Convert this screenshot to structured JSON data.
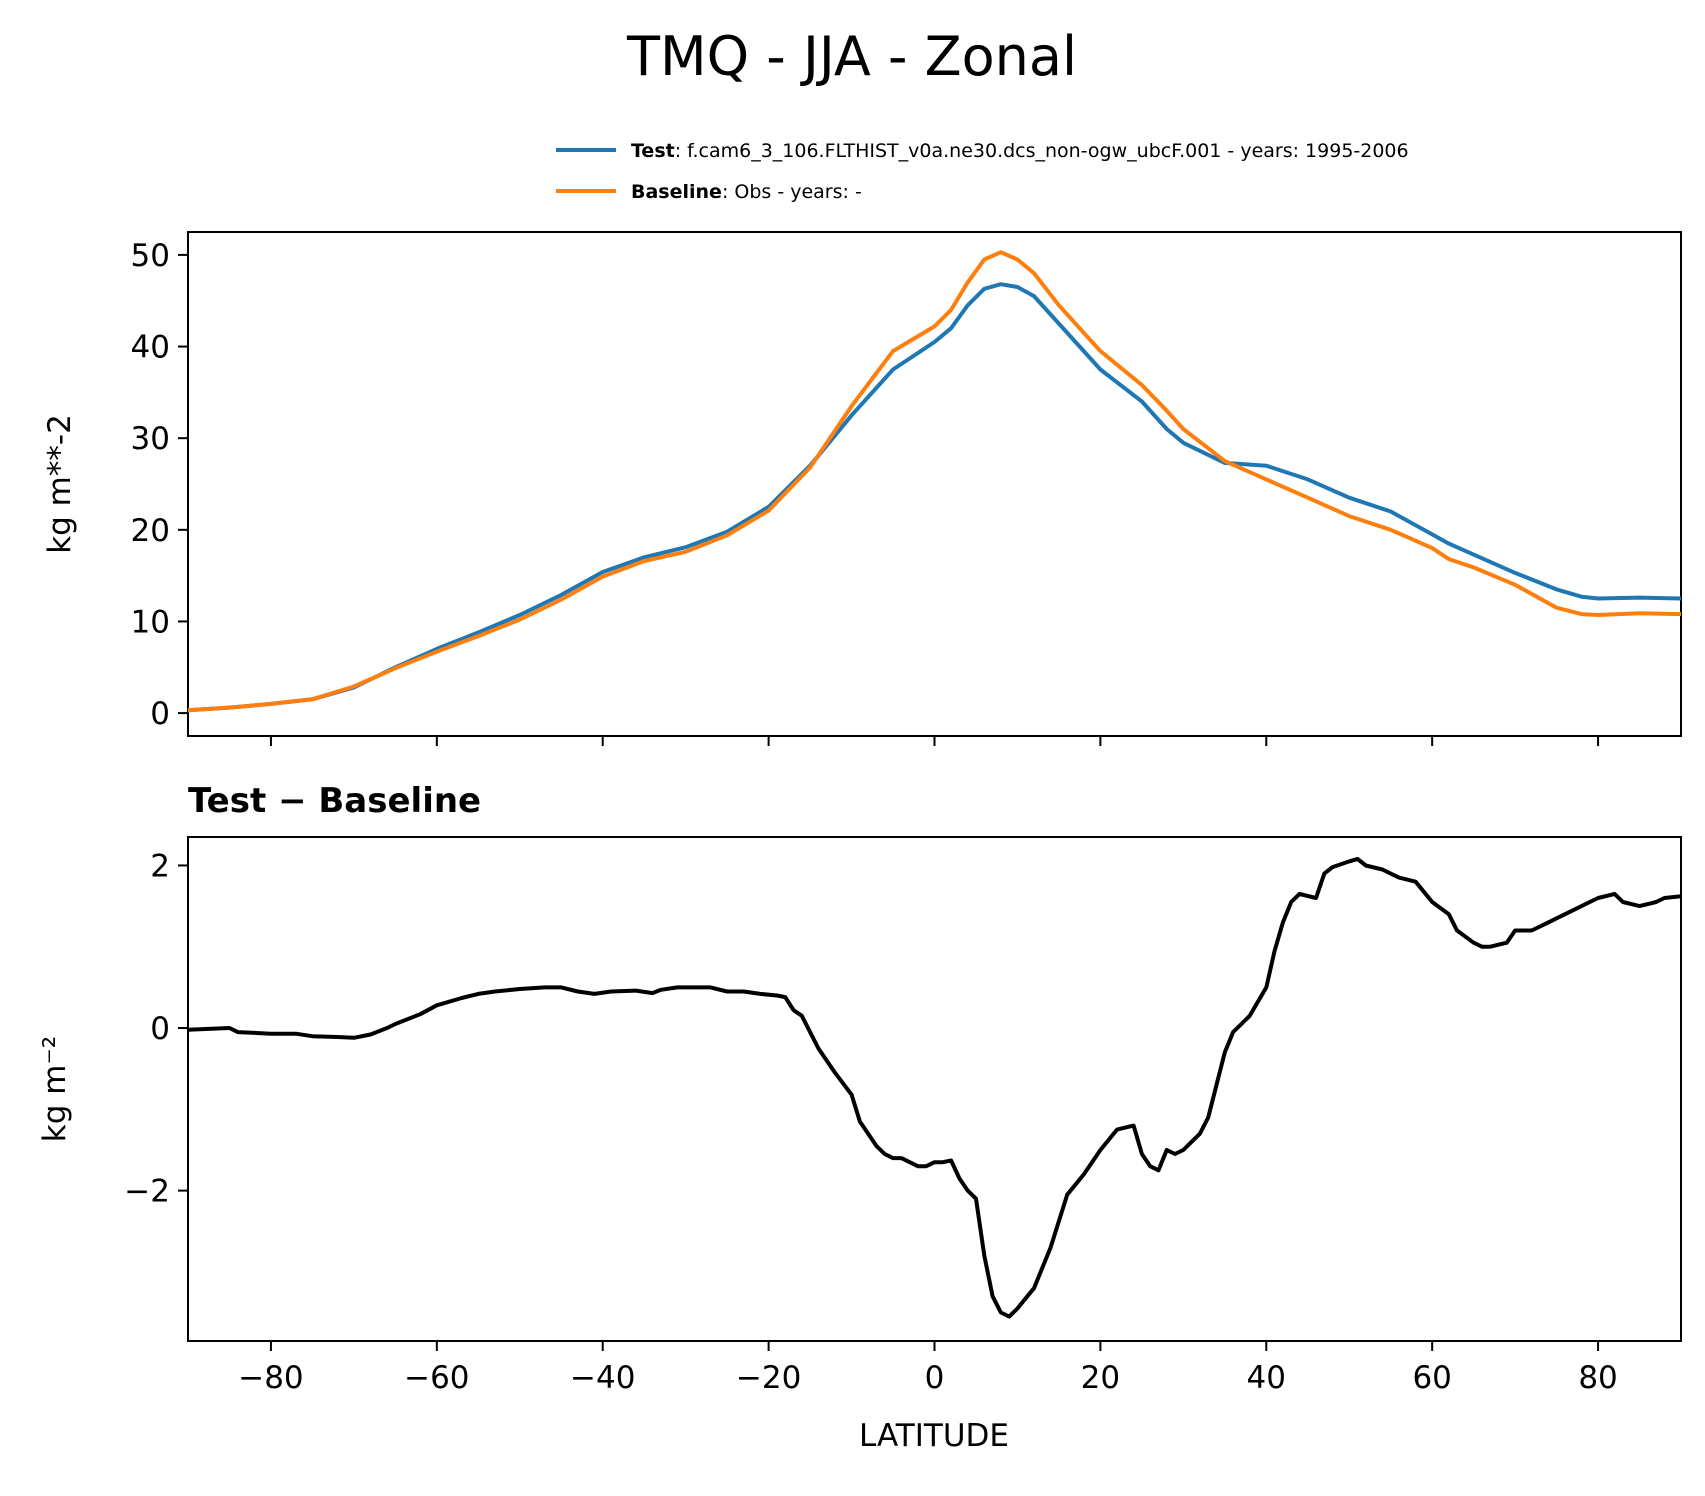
{
  "chart_data": {
    "type": "line",
    "title": "TMQ - JJA - Zonal",
    "legend": {
      "placement": "top-right",
      "entries": [
        {
          "series": "Test",
          "label_bold": "Test",
          "label_text": ": f.cam6_3_106.FLTHIST_v0a.ne30.dcs_non-ogw_ubcF.001 - years: 1995-2006",
          "color": "#1f77b4"
        },
        {
          "series": "Baseline",
          "label_bold": "Baseline",
          "label_text": ": Obs - years: -",
          "color": "#ff7f0e"
        }
      ]
    },
    "xlabel": "LATITUDE",
    "xlim": [
      -90,
      90
    ],
    "xticks": [
      -80,
      -60,
      -40,
      -20,
      0,
      20,
      40,
      60,
      80
    ],
    "xtick_labels": [
      "−80",
      "−60",
      "−40",
      "−20",
      "0",
      "20",
      "40",
      "60",
      "80"
    ],
    "top_panel": {
      "ylabel": "kg m**-2",
      "ylim": [
        -2.5,
        52.5
      ],
      "yticks": [
        0,
        10,
        20,
        30,
        40,
        50
      ],
      "ytick_labels": [
        "0",
        "10",
        "20",
        "30",
        "40",
        "50"
      ],
      "x": [
        -90,
        -85,
        -80,
        -75,
        -70,
        -65,
        -60,
        -55,
        -50,
        -45,
        -40,
        -35,
        -30,
        -25,
        -20,
        -15,
        -10,
        -5,
        0,
        2,
        4,
        6,
        8,
        10,
        12,
        15,
        20,
        25,
        28,
        30,
        35,
        40,
        45,
        50,
        55,
        60,
        62,
        65,
        70,
        75,
        78,
        80,
        85,
        90
      ],
      "series": [
        {
          "name": "Test",
          "color": "#1f77b4",
          "values": [
            0.3,
            0.6,
            1.0,
            1.5,
            2.8,
            5.0,
            7.0,
            8.8,
            10.7,
            12.9,
            15.4,
            17.0,
            18.1,
            19.8,
            22.5,
            27.0,
            32.5,
            37.5,
            40.5,
            42.0,
            44.5,
            46.3,
            46.8,
            46.5,
            45.5,
            42.5,
            37.5,
            34.0,
            31.0,
            29.5,
            27.3,
            27.0,
            25.5,
            23.5,
            22.0,
            19.5,
            18.5,
            17.3,
            15.3,
            13.5,
            12.7,
            12.5,
            12.6,
            12.5
          ]
        },
        {
          "name": "Baseline",
          "color": "#ff7f0e",
          "values": [
            0.3,
            0.6,
            1.0,
            1.5,
            2.9,
            4.9,
            6.7,
            8.4,
            10.2,
            12.4,
            14.9,
            16.6,
            17.6,
            19.4,
            22.1,
            26.8,
            33.5,
            39.5,
            42.2,
            44.0,
            47.0,
            49.5,
            50.3,
            49.5,
            48.0,
            44.5,
            39.5,
            35.8,
            33.0,
            31.0,
            27.5,
            25.5,
            23.5,
            21.5,
            20.0,
            18.0,
            16.8,
            15.9,
            14.0,
            11.5,
            10.8,
            10.7,
            10.9,
            10.8
          ]
        }
      ]
    },
    "bottom_panel": {
      "title": "Test − Baseline",
      "ylabel": "kg m⁻²",
      "ylim": [
        -3.85,
        2.35
      ],
      "yticks": [
        2,
        0,
        -2
      ],
      "ytick_labels": [
        "2",
        "0",
        "−2"
      ],
      "x": [
        -90,
        -85,
        -84,
        -80,
        -77,
        -75,
        -72,
        -70,
        -68,
        -66,
        -65,
        -62,
        -60,
        -57,
        -55,
        -53,
        -50,
        -47,
        -45,
        -43,
        -41,
        -39,
        -36,
        -34,
        -33,
        -31,
        -29,
        -27,
        -25,
        -23,
        -21,
        -19,
        -18,
        -17,
        -16,
        -14,
        -12,
        -10,
        -9,
        -7,
        -6,
        -5,
        -4,
        -2,
        -1,
        0,
        1,
        2,
        3,
        4,
        5,
        6,
        7,
        8,
        9,
        10,
        12,
        14,
        16,
        18,
        20,
        22,
        24,
        25,
        26,
        27,
        28,
        29,
        30,
        31,
        32,
        33,
        34,
        35,
        36,
        37,
        38,
        40,
        41,
        42,
        43,
        44,
        46,
        47,
        48,
        50,
        51,
        52,
        54,
        56,
        58,
        60,
        62,
        63,
        65,
        66,
        67,
        69,
        70,
        72,
        74,
        75,
        77,
        79,
        80,
        82,
        83,
        85,
        87,
        88,
        90
      ],
      "values": [
        -0.02,
        0.0,
        -0.05,
        -0.07,
        -0.07,
        -0.1,
        -0.11,
        -0.12,
        -0.08,
        0.0,
        0.05,
        0.17,
        0.28,
        0.37,
        0.42,
        0.45,
        0.48,
        0.5,
        0.5,
        0.45,
        0.42,
        0.45,
        0.46,
        0.43,
        0.47,
        0.5,
        0.5,
        0.5,
        0.45,
        0.45,
        0.42,
        0.4,
        0.38,
        0.22,
        0.15,
        -0.25,
        -0.55,
        -0.82,
        -1.15,
        -1.45,
        -1.55,
        -1.6,
        -1.6,
        -1.7,
        -1.7,
        -1.65,
        -1.65,
        -1.63,
        -1.85,
        -2.0,
        -2.1,
        -2.8,
        -3.3,
        -3.5,
        -3.55,
        -3.45,
        -3.2,
        -2.7,
        -2.05,
        -1.8,
        -1.5,
        -1.25,
        -1.2,
        -1.55,
        -1.7,
        -1.75,
        -1.5,
        -1.55,
        -1.5,
        -1.4,
        -1.3,
        -1.1,
        -0.7,
        -0.3,
        -0.05,
        0.05,
        0.15,
        0.5,
        0.95,
        1.3,
        1.55,
        1.65,
        1.6,
        1.9,
        1.98,
        2.05,
        2.08,
        2.0,
        1.95,
        1.85,
        1.8,
        1.55,
        1.4,
        1.2,
        1.05,
        1.0,
        1.0,
        1.05,
        1.2,
        1.2,
        1.3,
        1.35,
        1.45,
        1.55,
        1.6,
        1.65,
        1.55,
        1.5,
        1.55,
        1.6,
        1.62
      ]
    }
  }
}
